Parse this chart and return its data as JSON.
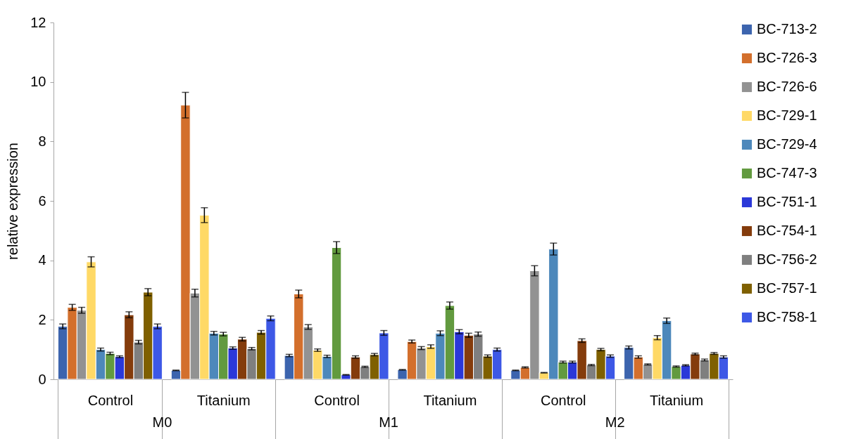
{
  "chart_data": {
    "type": "bar",
    "ylabel": "relative expression",
    "categories": [
      "Control",
      "Titanium",
      "Control",
      "Titanium",
      "Control",
      "Titanium"
    ],
    "annotations": [
      "M0",
      "M1",
      "M2"
    ],
    "ylim": [
      0,
      12
    ],
    "yticks": [
      0,
      2,
      4,
      6,
      8,
      10,
      12
    ],
    "legend": "right",
    "series": [
      {
        "name": "BC-713-2",
        "color": "#3c64ae",
        "values": [
          1.78,
          0.3,
          0.8,
          0.32,
          0.3,
          1.07
        ],
        "errors": [
          0.08,
          0.01,
          0.04,
          0.01,
          0.01,
          0.05
        ]
      },
      {
        "name": "BC-726-3",
        "color": "#d36f2c",
        "values": [
          2.42,
          9.22,
          2.87,
          1.27,
          0.4,
          0.75
        ],
        "errors": [
          0.1,
          0.43,
          0.13,
          0.05,
          0.02,
          0.04
        ]
      },
      {
        "name": "BC-726-6",
        "color": "#929292",
        "values": [
          2.32,
          2.9,
          1.76,
          1.05,
          3.65,
          0.5
        ],
        "errors": [
          0.1,
          0.13,
          0.08,
          0.05,
          0.17,
          0.02
        ]
      },
      {
        "name": "BC-729-1",
        "color": "#ffd966",
        "values": [
          3.95,
          5.52,
          0.98,
          1.1,
          0.22,
          1.4
        ],
        "errors": [
          0.17,
          0.25,
          0.04,
          0.06,
          0.01,
          0.07
        ]
      },
      {
        "name": "BC-729-4",
        "color": "#4d88bb",
        "values": [
          1.0,
          1.55,
          0.77,
          1.55,
          4.38,
          1.97
        ],
        "errors": [
          0.05,
          0.06,
          0.04,
          0.08,
          0.2,
          0.09
        ]
      },
      {
        "name": "BC-747-3",
        "color": "#629a3f",
        "values": [
          0.87,
          1.52,
          4.43,
          2.48,
          0.58,
          0.43
        ],
        "errors": [
          0.04,
          0.06,
          0.2,
          0.12,
          0.03,
          0.02
        ]
      },
      {
        "name": "BC-751-1",
        "color": "#2b38d8",
        "values": [
          0.76,
          1.05,
          0.15,
          1.6,
          0.58,
          0.47
        ],
        "errors": [
          0.03,
          0.04,
          0.01,
          0.07,
          0.03,
          0.02
        ]
      },
      {
        "name": "BC-754-1",
        "color": "#843c0c",
        "values": [
          2.17,
          1.35,
          0.75,
          1.48,
          1.3,
          0.85
        ],
        "errors": [
          0.1,
          0.06,
          0.04,
          0.07,
          0.06,
          0.03
        ]
      },
      {
        "name": "BC-756-2",
        "color": "#7f7f7f",
        "values": [
          1.25,
          1.03,
          0.42,
          1.52,
          0.48,
          0.65
        ],
        "errors": [
          0.06,
          0.04,
          0.02,
          0.07,
          0.02,
          0.03
        ]
      },
      {
        "name": "BC-757-1",
        "color": "#7f6000",
        "values": [
          2.93,
          1.58,
          0.83,
          0.78,
          1.0,
          0.87
        ],
        "errors": [
          0.12,
          0.06,
          0.04,
          0.04,
          0.04,
          0.03
        ]
      },
      {
        "name": "BC-758-1",
        "color": "#3d58e6",
        "values": [
          1.78,
          2.05,
          1.56,
          1.0,
          0.78,
          0.75
        ],
        "errors": [
          0.08,
          0.08,
          0.08,
          0.05,
          0.04,
          0.04
        ]
      }
    ]
  }
}
